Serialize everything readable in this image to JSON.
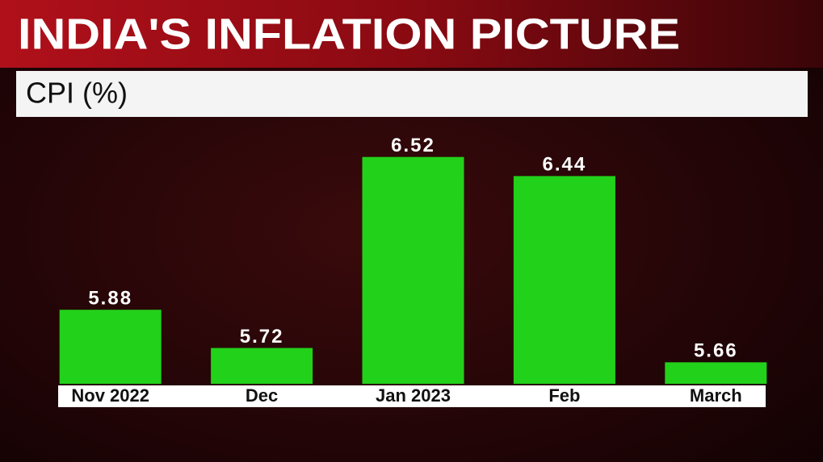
{
  "chart_data": {
    "type": "bar",
    "title": "INDIA'S INFLATION PICTURE",
    "subtitle": "CPI (%)",
    "categories": [
      "Nov 2022",
      "Dec",
      "Jan 2023",
      "Feb",
      "March"
    ],
    "values": [
      5.88,
      5.72,
      6.52,
      6.44,
      5.66
    ],
    "color": "#22d11a",
    "ylim": [
      5.57,
      6.6
    ]
  }
}
